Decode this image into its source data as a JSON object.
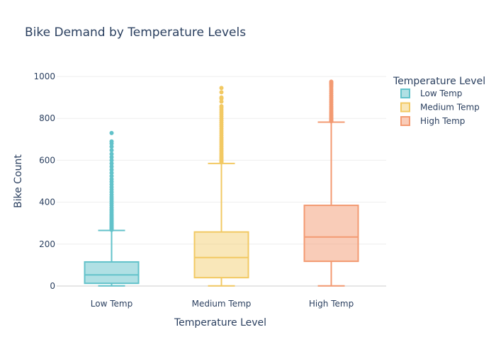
{
  "chart_data": {
    "type": "box",
    "title": "Bike Demand by Temperature Levels",
    "xlabel": "Temperature Level",
    "ylabel": "Bike Count",
    "ylim": [
      0,
      1000
    ],
    "yticks": [
      0,
      200,
      400,
      600,
      800,
      1000
    ],
    "grid": true,
    "legend": {
      "title": "Temperature Level",
      "position": "top-right"
    },
    "categories": [
      "Low Temp",
      "Medium Temp",
      "High Temp"
    ],
    "series": [
      {
        "name": "Low Temp",
        "color": "#62c2ca",
        "fill": "rgba(98,194,202,0.5)",
        "min": 1,
        "q1": 13,
        "median": 53,
        "q3": 115,
        "upper_fence": 265,
        "outliers": [
          268,
          272,
          276,
          280,
          285,
          290,
          295,
          300,
          305,
          310,
          316,
          322,
          328,
          335,
          342,
          350,
          358,
          366,
          375,
          385,
          395,
          405,
          415,
          425,
          436,
          448,
          460,
          472,
          485,
          498,
          510,
          525,
          540,
          555,
          570,
          585,
          600,
          615,
          630,
          648,
          665,
          680,
          690,
          730
        ]
      },
      {
        "name": "Medium Temp",
        "color": "#f2c963",
        "fill": "rgba(242,201,99,0.45)",
        "min": 1,
        "q1": 40,
        "median": 136,
        "q3": 258,
        "upper_fence": 585,
        "outliers": [
          590,
          595,
          600,
          606,
          612,
          618,
          625,
          632,
          640,
          648,
          656,
          665,
          674,
          683,
          692,
          701,
          710,
          720,
          730,
          740,
          750,
          760,
          770,
          780,
          790,
          800,
          810,
          820,
          830,
          840,
          850,
          858,
          880,
          895,
          900,
          925,
          945
        ]
      },
      {
        "name": "High Temp",
        "color": "#f39a72",
        "fill": "rgba(243,154,114,0.5)",
        "min": 1,
        "q1": 118,
        "median": 234,
        "q3": 385,
        "upper_fence": 782,
        "outliers": [
          786,
          790,
          795,
          800,
          806,
          812,
          818,
          825,
          832,
          840,
          848,
          856,
          865,
          874,
          883,
          892,
          901,
          910,
          920,
          930,
          940,
          950,
          958,
          965,
          970,
          975
        ]
      }
    ]
  }
}
